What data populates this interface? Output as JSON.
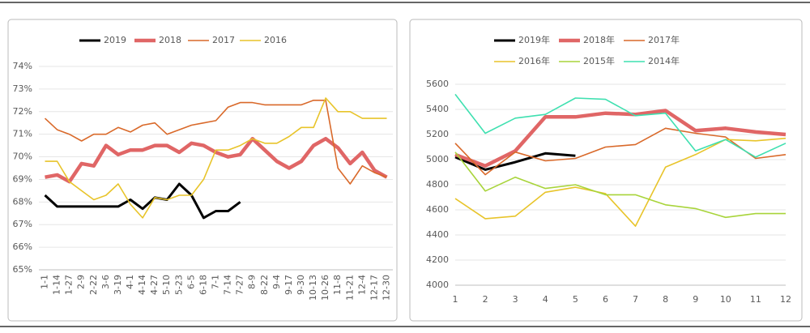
{
  "chart_data": [
    {
      "type": "line",
      "categories": [
        "1-1",
        "1-14",
        "1-27",
        "2-9",
        "2-22",
        "3-6",
        "3-19",
        "4-1",
        "4-14",
        "4-27",
        "5-10",
        "5-23",
        "6-5",
        "6-18",
        "7-1",
        "7-14",
        "7-27",
        "8-9",
        "8-22",
        "9-4",
        "9-17",
        "9-30",
        "10-13",
        "10-26",
        "11-8",
        "11-21",
        "12-4",
        "12-17",
        "12-30"
      ],
      "series": [
        {
          "name": "2019",
          "color": "#000000",
          "values": [
            68.3,
            67.8,
            67.8,
            67.8,
            67.8,
            67.8,
            67.8,
            68.1,
            67.7,
            68.2,
            68.1,
            68.8,
            68.3,
            67.3,
            67.6,
            67.6,
            68.0,
            null,
            null,
            null,
            null,
            null,
            null,
            null,
            null,
            null,
            null,
            null,
            null
          ]
        },
        {
          "name": "2018",
          "color": "#e06666",
          "values": [
            69.1,
            69.2,
            68.9,
            69.7,
            69.6,
            70.5,
            70.1,
            70.3,
            70.3,
            70.5,
            70.5,
            70.2,
            70.6,
            70.5,
            70.2,
            70.0,
            70.1,
            70.8,
            70.3,
            69.8,
            69.5,
            69.8,
            70.5,
            70.8,
            70.4,
            69.7,
            70.2,
            69.4,
            69.1
          ]
        },
        {
          "name": "2017",
          "color": "#d9692a",
          "values": [
            71.7,
            71.2,
            71.0,
            70.7,
            71.0,
            71.0,
            71.3,
            71.1,
            71.4,
            71.5,
            71.0,
            71.2,
            71.4,
            71.5,
            71.6,
            72.2,
            72.4,
            72.4,
            72.3,
            72.3,
            72.3,
            72.3,
            72.5,
            72.5,
            69.5,
            68.8,
            69.6,
            69.3,
            69.1
          ]
        },
        {
          "name": "2016",
          "color": "#e8c42a",
          "values": [
            69.8,
            69.8,
            68.9,
            68.5,
            68.1,
            68.3,
            68.8,
            67.9,
            67.3,
            68.2,
            68.1,
            68.3,
            68.3,
            69.0,
            70.3,
            70.3,
            70.5,
            70.8,
            70.6,
            70.6,
            70.9,
            71.3,
            71.3,
            72.6,
            72.0,
            72.0,
            71.7,
            71.7,
            71.7
          ]
        }
      ],
      "ylim": [
        65,
        74
      ],
      "yticks": [
        {
          "value": 65,
          "label": "65%"
        },
        {
          "value": 66,
          "label": "66%"
        },
        {
          "value": 67,
          "label": "67%"
        },
        {
          "value": 68,
          "label": "68%"
        },
        {
          "value": 69,
          "label": "69%"
        },
        {
          "value": 70,
          "label": "70%"
        },
        {
          "value": 71,
          "label": "71%"
        },
        {
          "value": 72,
          "label": "72%"
        },
        {
          "value": 73,
          "label": "73%"
        },
        {
          "value": 74,
          "label": "74%"
        }
      ],
      "legend": "top"
    },
    {
      "type": "line",
      "x": [
        1,
        2,
        3,
        4,
        5,
        6,
        7,
        8,
        9,
        10,
        11,
        12
      ],
      "series": [
        {
          "name": "2019年",
          "color": "#000000",
          "values": [
            5020,
            4920,
            4980,
            5050,
            5030,
            null,
            null,
            null,
            null,
            null,
            null,
            null
          ]
        },
        {
          "name": "2018年",
          "color": "#e06666",
          "values": [
            5040,
            4950,
            5070,
            5340,
            5340,
            5370,
            5360,
            5390,
            5230,
            5250,
            5220,
            5200
          ]
        },
        {
          "name": "2017年",
          "color": "#d9692a",
          "values": [
            5130,
            4880,
            5060,
            4990,
            5010,
            5100,
            5120,
            5250,
            5210,
            5180,
            5010,
            5040
          ]
        },
        {
          "name": "2016年",
          "color": "#e8c42a",
          "values": [
            4690,
            4530,
            4550,
            4740,
            4780,
            4730,
            4470,
            4940,
            5040,
            5160,
            5150,
            5170
          ]
        },
        {
          "name": "2015年",
          "color": "#a8d43a",
          "values": [
            5060,
            4750,
            4860,
            4770,
            4800,
            4720,
            4720,
            4640,
            4610,
            4540,
            4570,
            4570
          ]
        },
        {
          "name": "2014年",
          "color": "#3fe0b0",
          "values": [
            5520,
            5210,
            5330,
            5360,
            5490,
            5480,
            5350,
            5370,
            5070,
            5160,
            5020,
            5130
          ]
        }
      ],
      "xlim": [
        1,
        12
      ],
      "xticks": [
        1,
        2,
        3,
        4,
        5,
        6,
        7,
        8,
        9,
        10,
        11,
        12
      ],
      "ylim": [
        4000,
        5600
      ],
      "yticks": [
        4000,
        4200,
        4400,
        4600,
        4800,
        5000,
        5200,
        5400,
        5600
      ],
      "legend": "top"
    }
  ]
}
